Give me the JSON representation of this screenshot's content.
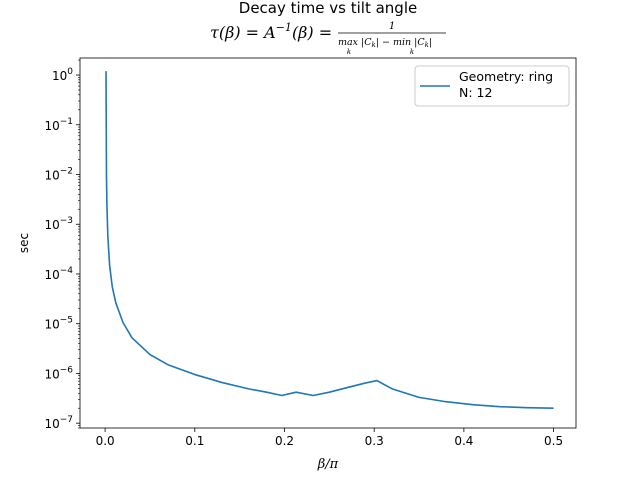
{
  "chart_data": {
    "type": "line",
    "title": "Decay time vs tilt angle",
    "subtitle_parts": {
      "lhs": "τ(β) = A",
      "lhs_exp": "−1",
      "rhs": "(β) =",
      "numerator": "1",
      "denominator_max": "max |C",
      "denominator_min": " − min |C",
      "denominator_sub": "k",
      "denominator_close": "|"
    },
    "xlabel": "β/π",
    "ylabel": "sec",
    "xlim": [
      -0.028,
      0.525
    ],
    "ylim": [
      8e-08,
      2.2
    ],
    "yscale": "log",
    "xticks": [
      0.0,
      0.1,
      0.2,
      0.3,
      0.4,
      0.5
    ],
    "xtick_labels": [
      "0.0",
      "0.1",
      "0.2",
      "0.3",
      "0.4",
      "0.5"
    ],
    "yticks": [
      1e-07,
      1e-06,
      1e-05,
      0.0001,
      0.001,
      0.01,
      0.1,
      1
    ],
    "ytick_base": "10",
    "ytick_exponents": [
      "−7",
      "−6",
      "−5",
      "−4",
      "−3",
      "−2",
      "−1",
      "0"
    ],
    "grid": false,
    "legend_placement": "top-right",
    "legend_lines": [
      "Geometry: ring",
      "N: 12"
    ],
    "color": "#1f77b4",
    "series": [
      {
        "x": [
          0.001,
          0.0015,
          0.002,
          0.003,
          0.005,
          0.008,
          0.012,
          0.02,
          0.03,
          0.05,
          0.07,
          0.1,
          0.13,
          0.16,
          0.18,
          0.197,
          0.213,
          0.232,
          0.25,
          0.27,
          0.29,
          0.303,
          0.32,
          0.35,
          0.38,
          0.41,
          0.44,
          0.47,
          0.5
        ],
        "y": [
          1.2,
          0.01,
          0.0025,
          0.0006,
          0.00015,
          5.5e-05,
          2.6e-05,
          1.05e-05,
          5.2e-06,
          2.4e-06,
          1.5e-06,
          9.5e-07,
          6.6e-07,
          4.9e-07,
          4.2e-07,
          3.6e-07,
          4.2e-07,
          3.6e-07,
          4.2e-07,
          5.2e-07,
          6.4e-07,
          7.2e-07,
          4.9e-07,
          3.3e-07,
          2.7e-07,
          2.35e-07,
          2.15e-07,
          2.05e-07,
          2e-07
        ]
      }
    ]
  }
}
